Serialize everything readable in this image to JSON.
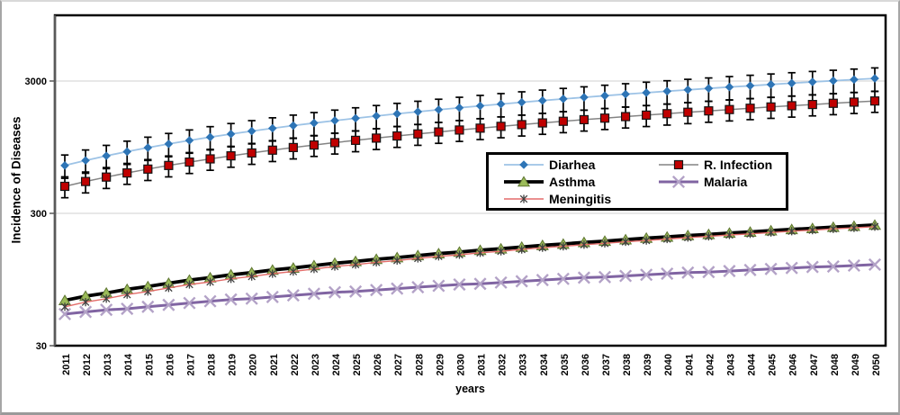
{
  "chart_data": {
    "type": "line",
    "title": "",
    "xlabel": "years",
    "ylabel": "Incidence of Diseases",
    "y_scale": "log",
    "y_ticks": [
      30,
      300,
      3000
    ],
    "ylim": [
      30,
      9500
    ],
    "grid": "horizontal-gridlines-at-ticks",
    "legend_position": "inside-center-right",
    "x": [
      2011,
      2012,
      2013,
      2014,
      2015,
      2016,
      2017,
      2018,
      2019,
      2020,
      2021,
      2022,
      2023,
      2024,
      2025,
      2026,
      2027,
      2028,
      2029,
      2030,
      2031,
      2032,
      2033,
      2034,
      2035,
      2036,
      2037,
      2038,
      2039,
      2040,
      2041,
      2042,
      2043,
      2044,
      2045,
      2046,
      2047,
      2048,
      2049,
      2050
    ],
    "series": [
      {
        "name": "Diarhea",
        "marker": "diamond",
        "marker_color": "#2E75B6",
        "marker_stroke": "none",
        "line_color": "#9DC3E6",
        "line_width": 1.8,
        "error_pct": 0.2,
        "values": [
          690,
          753,
          816,
          878,
          941,
          1004,
          1067,
          1130,
          1193,
          1255,
          1318,
          1381,
          1444,
          1507,
          1569,
          1632,
          1695,
          1758,
          1821,
          1884,
          1946,
          2009,
          2072,
          2135,
          2198,
          2260,
          2323,
          2386,
          2449,
          2512,
          2575,
          2637,
          2700,
          2763,
          2826,
          2889,
          2952,
          3014,
          3077,
          3140
        ]
      },
      {
        "name": "R. Infection",
        "marker": "square",
        "marker_color": "#C00000",
        "marker_stroke": "#151515",
        "line_color": "#848484",
        "line_width": 1.5,
        "error_pct": 0.18,
        "values": [
          480,
          522,
          564,
          606,
          648,
          690,
          732,
          774,
          816,
          858,
          901,
          943,
          985,
          1027,
          1069,
          1111,
          1153,
          1195,
          1237,
          1279,
          1321,
          1363,
          1405,
          1447,
          1489,
          1531,
          1573,
          1615,
          1657,
          1699,
          1742,
          1784,
          1826,
          1868,
          1910,
          1952,
          1994,
          2036,
          2078,
          2120
        ]
      },
      {
        "name": "Asthma",
        "marker": "triangle",
        "marker_color": "#9BBB59",
        "marker_stroke": "#5E7530",
        "line_color": "#000000",
        "line_width": 3.8,
        "error_pct": 0,
        "values": [
          66,
          71,
          75,
          80,
          84,
          89,
          94,
          98,
          103,
          107,
          112,
          116,
          121,
          126,
          130,
          135,
          139,
          144,
          149,
          153,
          158,
          162,
          167,
          172,
          176,
          181,
          185,
          190,
          195,
          199,
          204,
          208,
          213,
          217,
          222,
          227,
          231,
          236,
          240,
          245
        ]
      },
      {
        "name": "Malaria",
        "marker": "big-x",
        "marker_color": "#B3A2C7",
        "marker_stroke": "#B3A2C7",
        "line_color": "#8064A2",
        "line_width": 3,
        "error_pct": 0,
        "values": [
          52,
          54,
          56,
          57,
          59,
          61,
          63,
          65,
          67,
          68,
          70,
          72,
          74,
          76,
          77,
          79,
          81,
          83,
          85,
          87,
          88,
          90,
          92,
          94,
          96,
          98,
          99,
          101,
          103,
          105,
          107,
          108,
          110,
          112,
          114,
          116,
          118,
          119,
          121,
          123
        ]
      },
      {
        "name": "Meningitis",
        "marker": "asterisk",
        "marker_color": "#404040",
        "marker_stroke": "#404040",
        "line_color": "#E36C6A",
        "line_width": 1.4,
        "error_pct": 0,
        "values": [
          59,
          64,
          68,
          73,
          77,
          82,
          87,
          91,
          96,
          100,
          105,
          109,
          114,
          119,
          123,
          128,
          132,
          137,
          142,
          146,
          151,
          155,
          160,
          165,
          169,
          174,
          178,
          183,
          187,
          192,
          197,
          201,
          206,
          210,
          215,
          220,
          224,
          229,
          233,
          238
        ]
      }
    ]
  },
  "colors": {
    "plot_border": "#000000",
    "axis_line": "#595959",
    "gridline": "#D9D9D9",
    "error_bar": "#000000",
    "background": "#FFFFFF"
  }
}
